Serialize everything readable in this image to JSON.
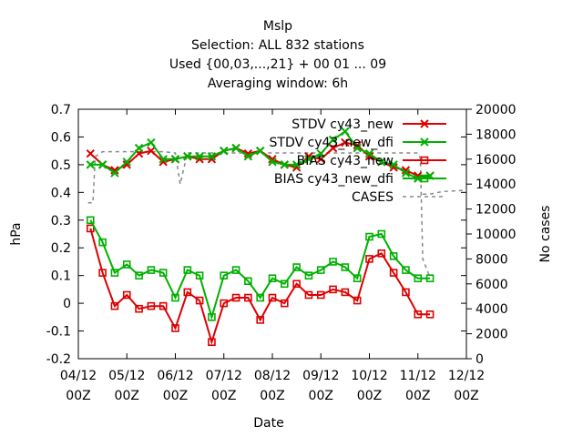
{
  "chart_data": {
    "type": "line",
    "title": [
      "Mslp",
      "Selection: ALL    832 stations",
      "Used {00,03,...,21} + 00 01 ... 09",
      "Averaging window:  6h"
    ],
    "xlabel": "Date",
    "ylabel": "hPa",
    "y2label": "No cases",
    "x_ticks": [
      {
        "line1": "04/12",
        "line2": "00Z"
      },
      {
        "line1": "05/12",
        "line2": "00Z"
      },
      {
        "line1": "06/12",
        "line2": "00Z"
      },
      {
        "line1": "07/12",
        "line2": "00Z"
      },
      {
        "line1": "08/12",
        "line2": "00Z"
      },
      {
        "line1": "09/12",
        "line2": "00Z"
      },
      {
        "line1": "10/12",
        "line2": "00Z"
      },
      {
        "line1": "11/12",
        "line2": "00Z"
      },
      {
        "line1": "12/12",
        "line2": "00Z"
      }
    ],
    "xlim": [
      0,
      8
    ],
    "ylim": [
      -0.2,
      0.7
    ],
    "y_ticks": [
      "-0.2",
      "-0.1",
      "0",
      "0.1",
      "0.2",
      "0.3",
      "0.4",
      "0.5",
      "0.6",
      "0.7"
    ],
    "y2lim": [
      0,
      20000
    ],
    "y2_ticks": [
      "0",
      "2000",
      "4000",
      "6000",
      "8000",
      "10000",
      "12000",
      "14000",
      "16000",
      "18000",
      "20000"
    ],
    "legend_position": "top-right",
    "x": [
      0.25,
      0.5,
      0.75,
      1.0,
      1.25,
      1.5,
      1.75,
      2.0,
      2.25,
      2.5,
      2.75,
      3.0,
      3.25,
      3.5,
      3.75,
      4.0,
      4.25,
      4.5,
      4.75,
      5.0,
      5.25,
      5.5,
      5.75,
      6.0,
      6.25,
      6.5,
      6.75,
      7.0,
      7.25
    ],
    "series": [
      {
        "name": "STDV cy43_new",
        "axis": "y1",
        "marker": "x",
        "color": "#dd0000",
        "values": [
          0.54,
          0.5,
          0.48,
          0.5,
          0.54,
          0.55,
          0.51,
          0.52,
          0.53,
          0.52,
          0.52,
          0.55,
          0.56,
          0.54,
          0.55,
          0.52,
          0.5,
          0.49,
          0.53,
          0.52,
          0.56,
          0.58,
          0.57,
          0.53,
          0.51,
          0.49,
          0.48,
          0.46,
          0.46
        ]
      },
      {
        "name": "STDV cy43_new_dfi",
        "axis": "y1",
        "marker": "x",
        "color": "#00b000",
        "values": [
          0.5,
          0.5,
          0.47,
          0.51,
          0.56,
          0.58,
          0.52,
          0.52,
          0.53,
          0.53,
          0.53,
          0.55,
          0.56,
          0.53,
          0.55,
          0.51,
          0.5,
          0.5,
          0.52,
          0.54,
          0.59,
          0.62,
          0.56,
          0.54,
          0.51,
          0.5,
          0.47,
          0.45,
          0.46
        ]
      },
      {
        "name": "BIAS cy43_new",
        "axis": "y1",
        "marker": "square",
        "color": "#dd0000",
        "values": [
          0.27,
          0.11,
          -0.01,
          0.03,
          -0.02,
          -0.01,
          -0.01,
          -0.09,
          0.04,
          0.01,
          -0.14,
          0.0,
          0.02,
          0.02,
          -0.06,
          0.02,
          0.0,
          0.07,
          0.03,
          0.03,
          0.05,
          0.04,
          0.01,
          0.16,
          0.18,
          0.11,
          0.04,
          -0.04,
          -0.04
        ]
      },
      {
        "name": "BIAS cy43_new_dfi",
        "axis": "y1",
        "marker": "square",
        "color": "#00b000",
        "values": [
          0.3,
          0.22,
          0.11,
          0.14,
          0.1,
          0.12,
          0.11,
          0.02,
          0.12,
          0.1,
          -0.05,
          0.1,
          0.12,
          0.08,
          0.02,
          0.09,
          0.07,
          0.13,
          0.1,
          0.12,
          0.15,
          0.13,
          0.09,
          0.24,
          0.25,
          0.17,
          0.12,
          0.09,
          0.09
        ]
      },
      {
        "name": "CASES",
        "axis": "y2",
        "marker": "none",
        "color": "#888888",
        "dashed": true,
        "x": [
          0.2,
          0.3,
          0.35,
          0.5,
          1.0,
          1.5,
          1.75,
          2.0,
          2.1,
          2.25,
          2.5,
          2.75,
          3.0,
          3.25,
          3.5,
          4.0,
          4.5,
          5.0,
          5.5,
          6.0,
          6.5,
          6.9,
          7.0,
          7.05,
          7.1,
          7.25
        ],
        "values": [
          12500,
          12500,
          16200,
          16600,
          16600,
          16600,
          16600,
          16500,
          14000,
          16500,
          16500,
          16500,
          16500,
          16500,
          16500,
          16500,
          16500,
          16500,
          16500,
          16500,
          16500,
          16500,
          16500,
          16100,
          8000,
          6500
        ]
      },
      {
        "name": "",
        "axis": "y2",
        "marker": "none",
        "color": "#888888",
        "dashed": true,
        "x": [
          7.1,
          7.25,
          7.5,
          8.0
        ],
        "values": [
          13200,
          13200,
          13400,
          13500
        ]
      }
    ]
  }
}
